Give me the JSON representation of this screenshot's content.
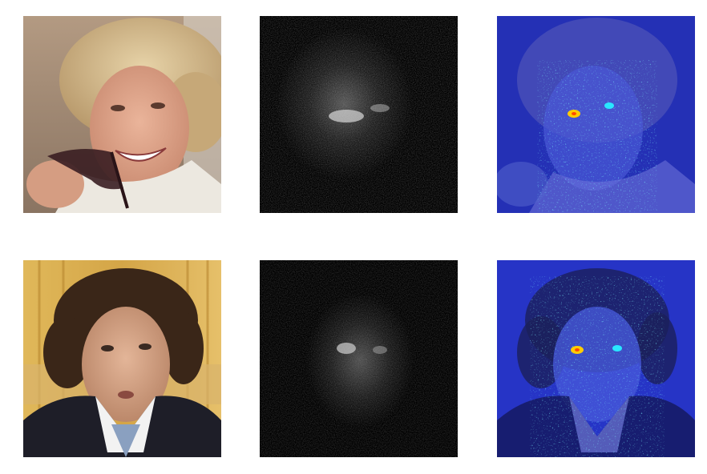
{
  "figure": {
    "rows": [
      {
        "photo": {
          "icon": "portrait-photo-woman"
        },
        "saliency": {
          "icon": "grayscale-saliency-map"
        },
        "overlay": {
          "icon": "heatmap-overlay",
          "colormap": "jet"
        }
      },
      {
        "photo": {
          "icon": "portrait-photo-man"
        },
        "saliency": {
          "icon": "grayscale-saliency-map"
        },
        "overlay": {
          "icon": "heatmap-overlay",
          "colormap": "jet"
        }
      }
    ],
    "colors": {
      "background": "#ffffff",
      "saliency_bg": "#000000",
      "overlay_tint": "#1d2fc8",
      "overlay_hot": "#ffcc00",
      "overlay_warm": "#29e6ff"
    }
  }
}
